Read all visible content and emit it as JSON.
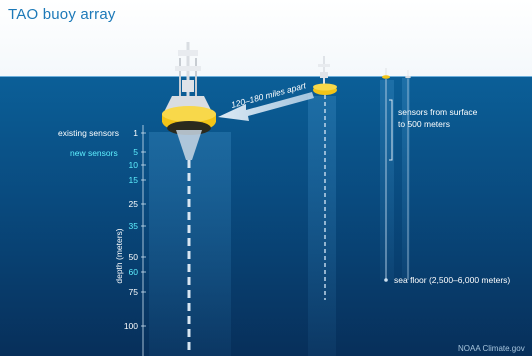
{
  "title": "TAO buoy array",
  "labels": {
    "existing": "existing sensors",
    "new": "new sensors",
    "spacing": "120–180 miles apart",
    "surface_line1": "sensors from surface",
    "surface_line2": "to 500 meters",
    "seafloor": "sea floor (2,500–6,000 meters)",
    "axis": "depth (meters)",
    "credit": "NOAA Climate.gov"
  },
  "depths": [
    {
      "value": "1",
      "type": "existing"
    },
    {
      "value": "5",
      "type": "new"
    },
    {
      "value": "10",
      "type": "new"
    },
    {
      "value": "15",
      "type": "new"
    },
    {
      "value": "25",
      "type": "existing"
    },
    {
      "value": "35",
      "type": "new"
    },
    {
      "value": "50",
      "type": "existing"
    },
    {
      "value": "60",
      "type": "new"
    },
    {
      "value": "75",
      "type": "existing"
    },
    {
      "value": "100",
      "type": "existing"
    }
  ],
  "colors": {
    "title": "#1c79b8",
    "existing": "#ffffff",
    "new": "#5ff0ff",
    "buoy": "#f2c417"
  }
}
